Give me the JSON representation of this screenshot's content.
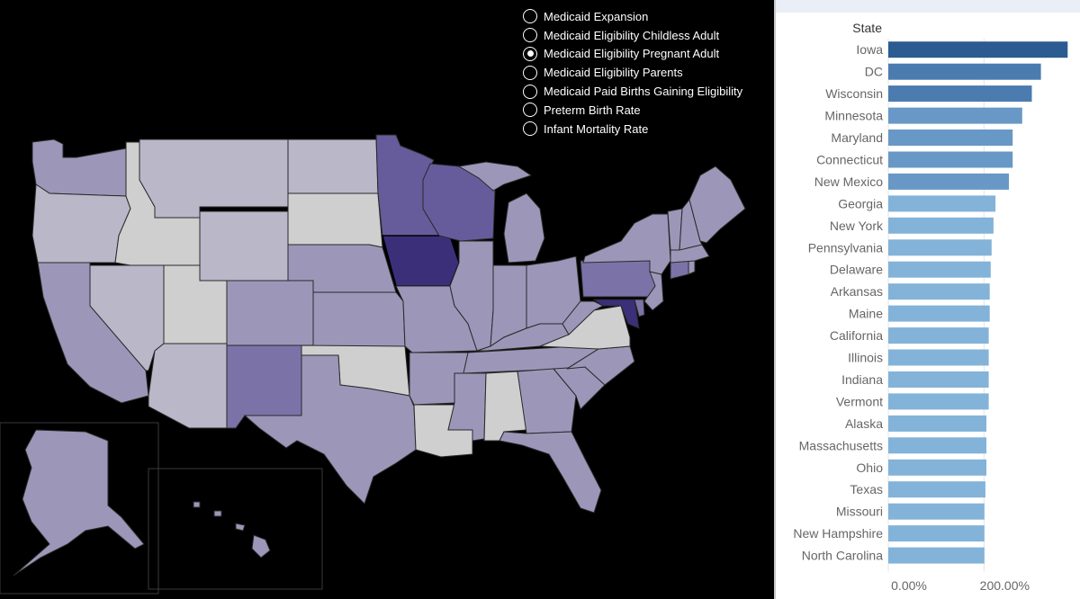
{
  "map": {
    "options": [
      {
        "label": "Medicaid Expansion",
        "selected": false
      },
      {
        "label": "Medicaid Eligibility Childless Adult",
        "selected": false
      },
      {
        "label": "Medicaid Eligibility Pregnant Adult",
        "selected": true
      },
      {
        "label": "Medicaid Eligibility Parents",
        "selected": false
      },
      {
        "label": "Medicaid Paid Births Gaining Eligibility",
        "selected": false
      },
      {
        "label": "Preterm Birth Rate",
        "selected": false
      },
      {
        "label": "Infant Mortality Rate",
        "selected": false
      }
    ],
    "colors": {
      "background": "#000000",
      "shade_lightest": "#cfcfcf",
      "shade_light": "#b9b7c8",
      "shade_mid": "#9c97b9",
      "shade_dark": "#7b73a8",
      "shade_darker": "#665c9c",
      "shade_darkest": "#3b2f7a",
      "border": "#2a2a2a"
    }
  },
  "chart_data": {
    "type": "bar",
    "orientation": "horizontal",
    "ylabel": "State",
    "x_ticks": [
      "0.00%",
      "200.00%"
    ],
    "xlim": [
      0,
      380
    ],
    "categories": [
      "Iowa",
      "DC",
      "Wisconsin",
      "Minnesota",
      "Maryland",
      "Connecticut",
      "New Mexico",
      "Georgia",
      "New York",
      "Pennsylvania",
      "Delaware",
      "Arkansas",
      "Maine",
      "California",
      "Illinois",
      "Indiana",
      "Vermont",
      "Alaska",
      "Massachusetts",
      "Ohio",
      "Texas",
      "Missouri",
      "New Hampshire",
      "North Carolina"
    ],
    "values": [
      375,
      319,
      300,
      280,
      260,
      260,
      252,
      224,
      220,
      216,
      214,
      212,
      212,
      210,
      210,
      210,
      210,
      205,
      205,
      205,
      203,
      201,
      201,
      201
    ],
    "colors": {
      "darkest": "#2b5b91",
      "dark": "#4a7cb0",
      "mid": "#6898c6",
      "light": "#83b3d9",
      "gridline": "#e6e6e6",
      "label_text": "#666666",
      "header_text": "#333333"
    }
  }
}
